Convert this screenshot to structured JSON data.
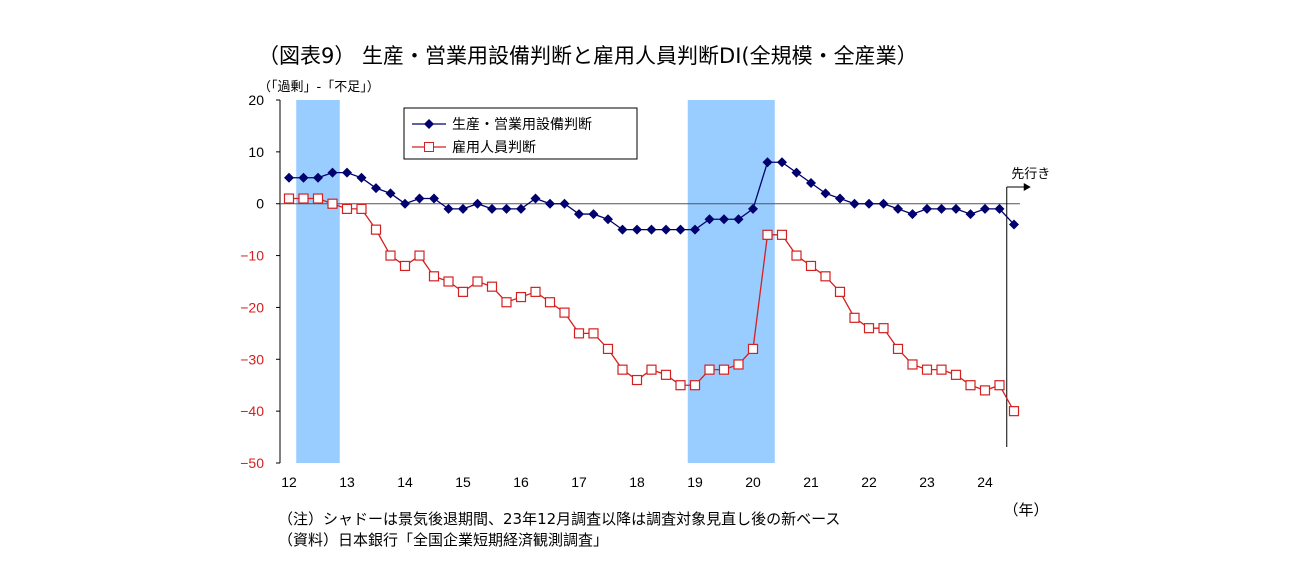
{
  "chart_data": {
    "type": "line",
    "title": "（図表9） 生産・営業用設備判断と雇用人員判断DI(全規模・全産業）",
    "ylabel": "（「過剰」-「不足」）",
    "xlabel": "（年）",
    "ylim": [
      -50,
      20
    ],
    "yticks": [
      20,
      10,
      0,
      -10,
      -20,
      -30,
      -40,
      -50
    ],
    "xticks": [
      "12",
      "13",
      "14",
      "15",
      "16",
      "17",
      "18",
      "19",
      "20",
      "21",
      "22",
      "23",
      "24"
    ],
    "x_start": "2012Q1",
    "x_end": "2024Q3",
    "legend_position": "top-center",
    "forecast_label": "先行き",
    "recession_shading": [
      [
        12.125,
        12.875
      ],
      [
        18.875,
        20.375
      ]
    ],
    "series": [
      {
        "name": "生産・営業用設備判断",
        "color": "#00006e",
        "marker": "diamond",
        "values": [
          5,
          5,
          5,
          6,
          6,
          5,
          3,
          2,
          0,
          1,
          1,
          -1,
          -1,
          0,
          -1,
          -1,
          -1,
          1,
          0,
          0,
          -2,
          -2,
          -3,
          -5,
          -5,
          -5,
          -5,
          -5,
          -5,
          -3,
          -3,
          -3,
          -1,
          8,
          8,
          6,
          4,
          2,
          1,
          0,
          0,
          0,
          -1,
          -2,
          -1,
          -1,
          -1,
          -2,
          -1,
          -1,
          -4
        ]
      },
      {
        "name": "雇用人員判断",
        "color": "#d42020",
        "marker": "square-open",
        "values": [
          1,
          1,
          1,
          0,
          -1,
          -1,
          -5,
          -10,
          -12,
          -10,
          -14,
          -15,
          -17,
          -15,
          -16,
          -19,
          -18,
          -17,
          -19,
          -21,
          -25,
          -25,
          -28,
          -32,
          -34,
          -32,
          -33,
          -35,
          -35,
          -32,
          -32,
          -31,
          -28,
          -6,
          -6,
          -10,
          -12,
          -14,
          -17,
          -22,
          -24,
          -24,
          -28,
          -31,
          -32,
          -32,
          -33,
          -35,
          -36,
          -35,
          -40
        ]
      }
    ]
  },
  "notes": [
    "（注）シャドーは景気後退期間、23年12月調査以降は調査対象見直し後の新ベース",
    "（資料）日本銀行「全国企業短期経済観測調査」"
  ]
}
